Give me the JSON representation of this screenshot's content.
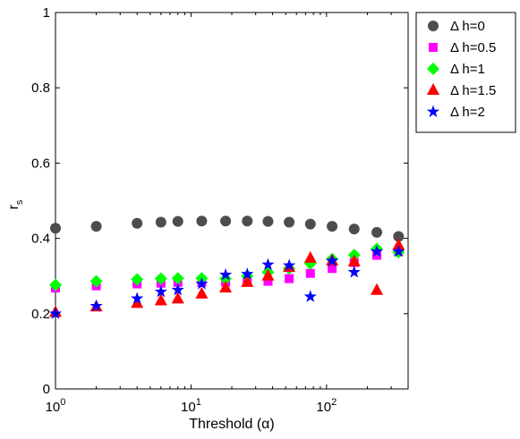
{
  "chart_data": {
    "type": "scatter",
    "xscale": "log",
    "xlim": [
      1,
      400
    ],
    "ylim": [
      0,
      1
    ],
    "xlabel": "Threshold (α)",
    "ylabel": "r",
    "ylabel_subscript": "s",
    "grid": false,
    "legend_position": "outside-top-right",
    "x_ticks": [
      {
        "value": 1,
        "base": "10",
        "exp": "0"
      },
      {
        "value": 10,
        "base": "10",
        "exp": "1"
      },
      {
        "value": 100,
        "base": "10",
        "exp": "2"
      }
    ],
    "y_ticks": [
      {
        "value": 0,
        "label": "0"
      },
      {
        "value": 0.2,
        "label": "0.2"
      },
      {
        "value": 0.4,
        "label": "0.4"
      },
      {
        "value": 0.6,
        "label": "0.6"
      },
      {
        "value": 0.8,
        "label": "0.8"
      },
      {
        "value": 1,
        "label": "1"
      }
    ],
    "x": [
      1,
      2,
      4,
      6,
      8,
      12,
      18,
      26,
      37,
      53,
      76,
      110,
      160,
      235,
      340
    ],
    "series": [
      {
        "name": "Δ h=0",
        "marker": "circle",
        "color": "#4d4d4d",
        "values": [
          0.427,
          0.432,
          0.44,
          0.443,
          0.445,
          0.446,
          0.446,
          0.446,
          0.445,
          0.443,
          0.438,
          0.432,
          0.425,
          0.416,
          0.405
        ]
      },
      {
        "name": "Δ h=0.5",
        "marker": "square",
        "color": "#ff00ff",
        "values": [
          0.268,
          0.274,
          0.279,
          0.281,
          0.283,
          0.283,
          0.284,
          0.285,
          0.286,
          0.293,
          0.307,
          0.32,
          0.336,
          0.355,
          0.365
        ]
      },
      {
        "name": "Δ h=1",
        "marker": "diamond",
        "color": "#00ff00",
        "values": [
          0.276,
          0.286,
          0.291,
          0.293,
          0.294,
          0.294,
          0.293,
          0.3,
          0.31,
          0.32,
          0.333,
          0.345,
          0.356,
          0.372,
          0.363
        ]
      },
      {
        "name": "Δ h=1.5",
        "marker": "triangle",
        "color": "#ff0000",
        "values": [
          0.203,
          0.218,
          0.227,
          0.234,
          0.239,
          0.252,
          0.268,
          0.283,
          0.3,
          0.323,
          0.347,
          0.34,
          0.338,
          0.262,
          0.381
        ]
      },
      {
        "name": "Δ h=2",
        "marker": "star",
        "color": "#0000ff",
        "values": [
          0.2,
          0.22,
          0.24,
          0.258,
          0.263,
          0.279,
          0.303,
          0.305,
          0.33,
          0.328,
          0.245,
          0.34,
          0.31,
          0.365,
          0.365
        ]
      }
    ]
  }
}
